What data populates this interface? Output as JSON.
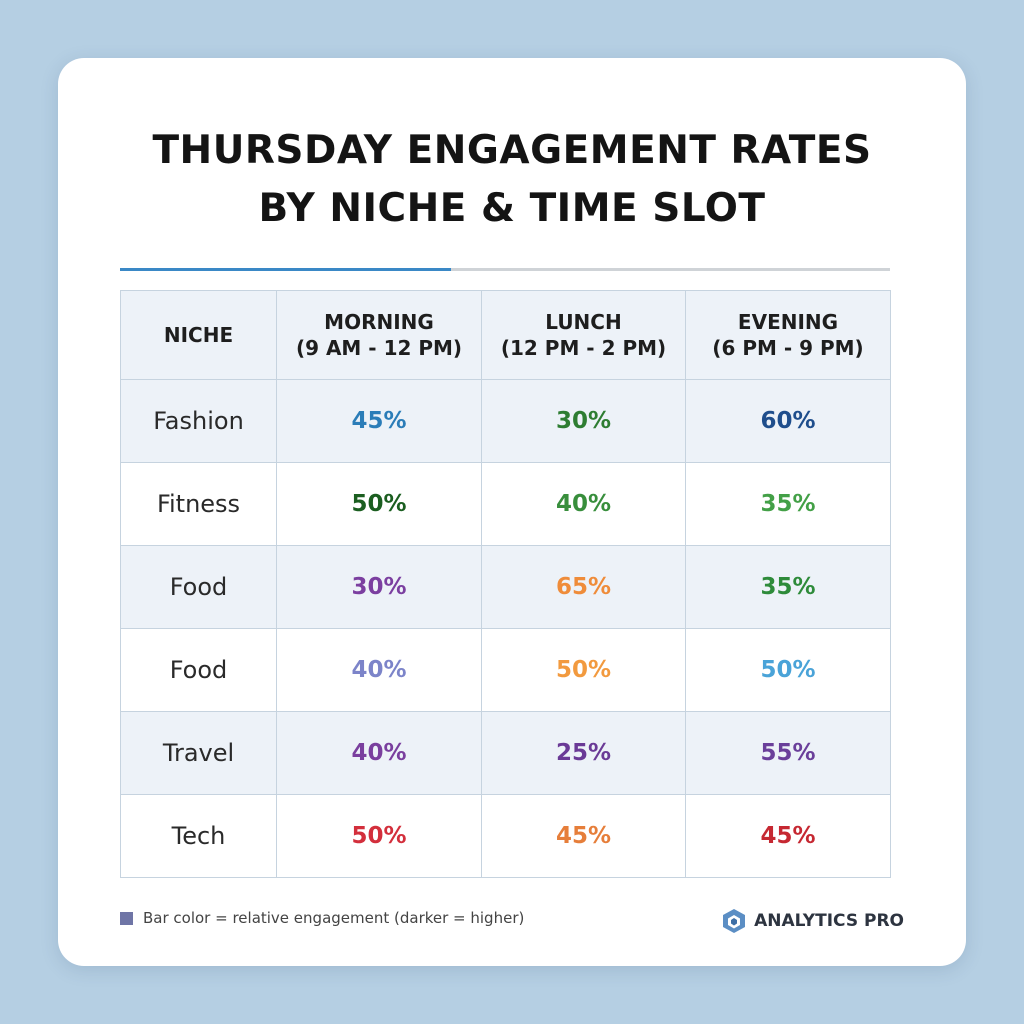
{
  "chart_data": {
    "type": "table",
    "title_lines": [
      "THURSDAY ENGAGEMENT RATES",
      "BY NICHE & TIME SLOT"
    ],
    "columns": [
      {
        "label": "NICHE",
        "sub": ""
      },
      {
        "label": "MORNING",
        "sub": "(9 AM - 12 PM)"
      },
      {
        "label": "LUNCH",
        "sub": "(12 PM - 2 PM)"
      },
      {
        "label": "EVENING",
        "sub": "(6 PM - 9 PM)"
      }
    ],
    "rows": [
      {
        "niche": "Fashion",
        "values": [
          "45%",
          "30%",
          "60%"
        ],
        "colors": [
          "#2b7db8",
          "#2e7d32",
          "#1f4e8c"
        ]
      },
      {
        "niche": "Fitness",
        "values": [
          "50%",
          "40%",
          "35%"
        ],
        "colors": [
          "#1b5e20",
          "#388e3c",
          "#43a047"
        ]
      },
      {
        "niche": "Food",
        "values": [
          "30%",
          "65%",
          "35%"
        ],
        "colors": [
          "#7b3fa0",
          "#ef8c3a",
          "#2e8b3a"
        ]
      },
      {
        "niche": "Food",
        "values": [
          "40%",
          "50%",
          "50%"
        ],
        "colors": [
          "#7c84c9",
          "#f29a3f",
          "#4aa3d8"
        ]
      },
      {
        "niche": "Travel",
        "values": [
          "40%",
          "25%",
          "55%"
        ],
        "colors": [
          "#7a3f9e",
          "#6a3a96",
          "#6a3f9a"
        ]
      },
      {
        "niche": "Tech",
        "values": [
          "50%",
          "45%",
          "45%"
        ],
        "colors": [
          "#d32f3c",
          "#e67e3a",
          "#c62832"
        ]
      }
    ]
  },
  "divider": {
    "accent_fraction": 0.43,
    "accent_color": "#3a88c6"
  },
  "legend": {
    "text": "Bar color = relative engagement (darker = higher)",
    "swatch_color": "#6f75a6"
  },
  "brand": {
    "name": "ANALYTICS PRO",
    "icon": "hexagon-logo-icon"
  }
}
